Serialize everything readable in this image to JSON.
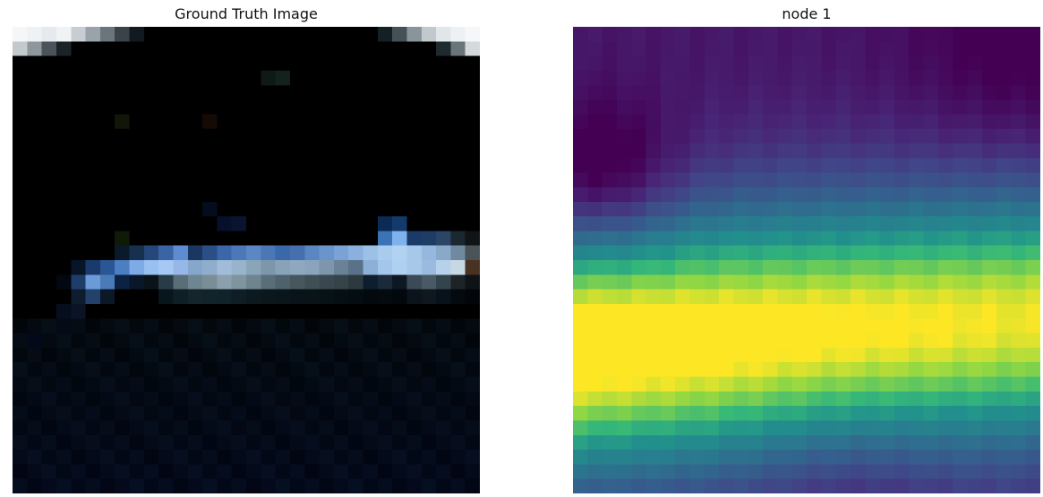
{
  "panels": [
    {
      "title": "Ground Truth Image",
      "content": "pixelated night photo: dark background with a bright light-blue diagonal streak",
      "grid": 32
    },
    {
      "title": "node 1",
      "content": "viridis heatmap: purple top and bottom, yellow horizontal band in the lower-middle",
      "grid": 32,
      "colormap": "viridis"
    }
  ]
}
